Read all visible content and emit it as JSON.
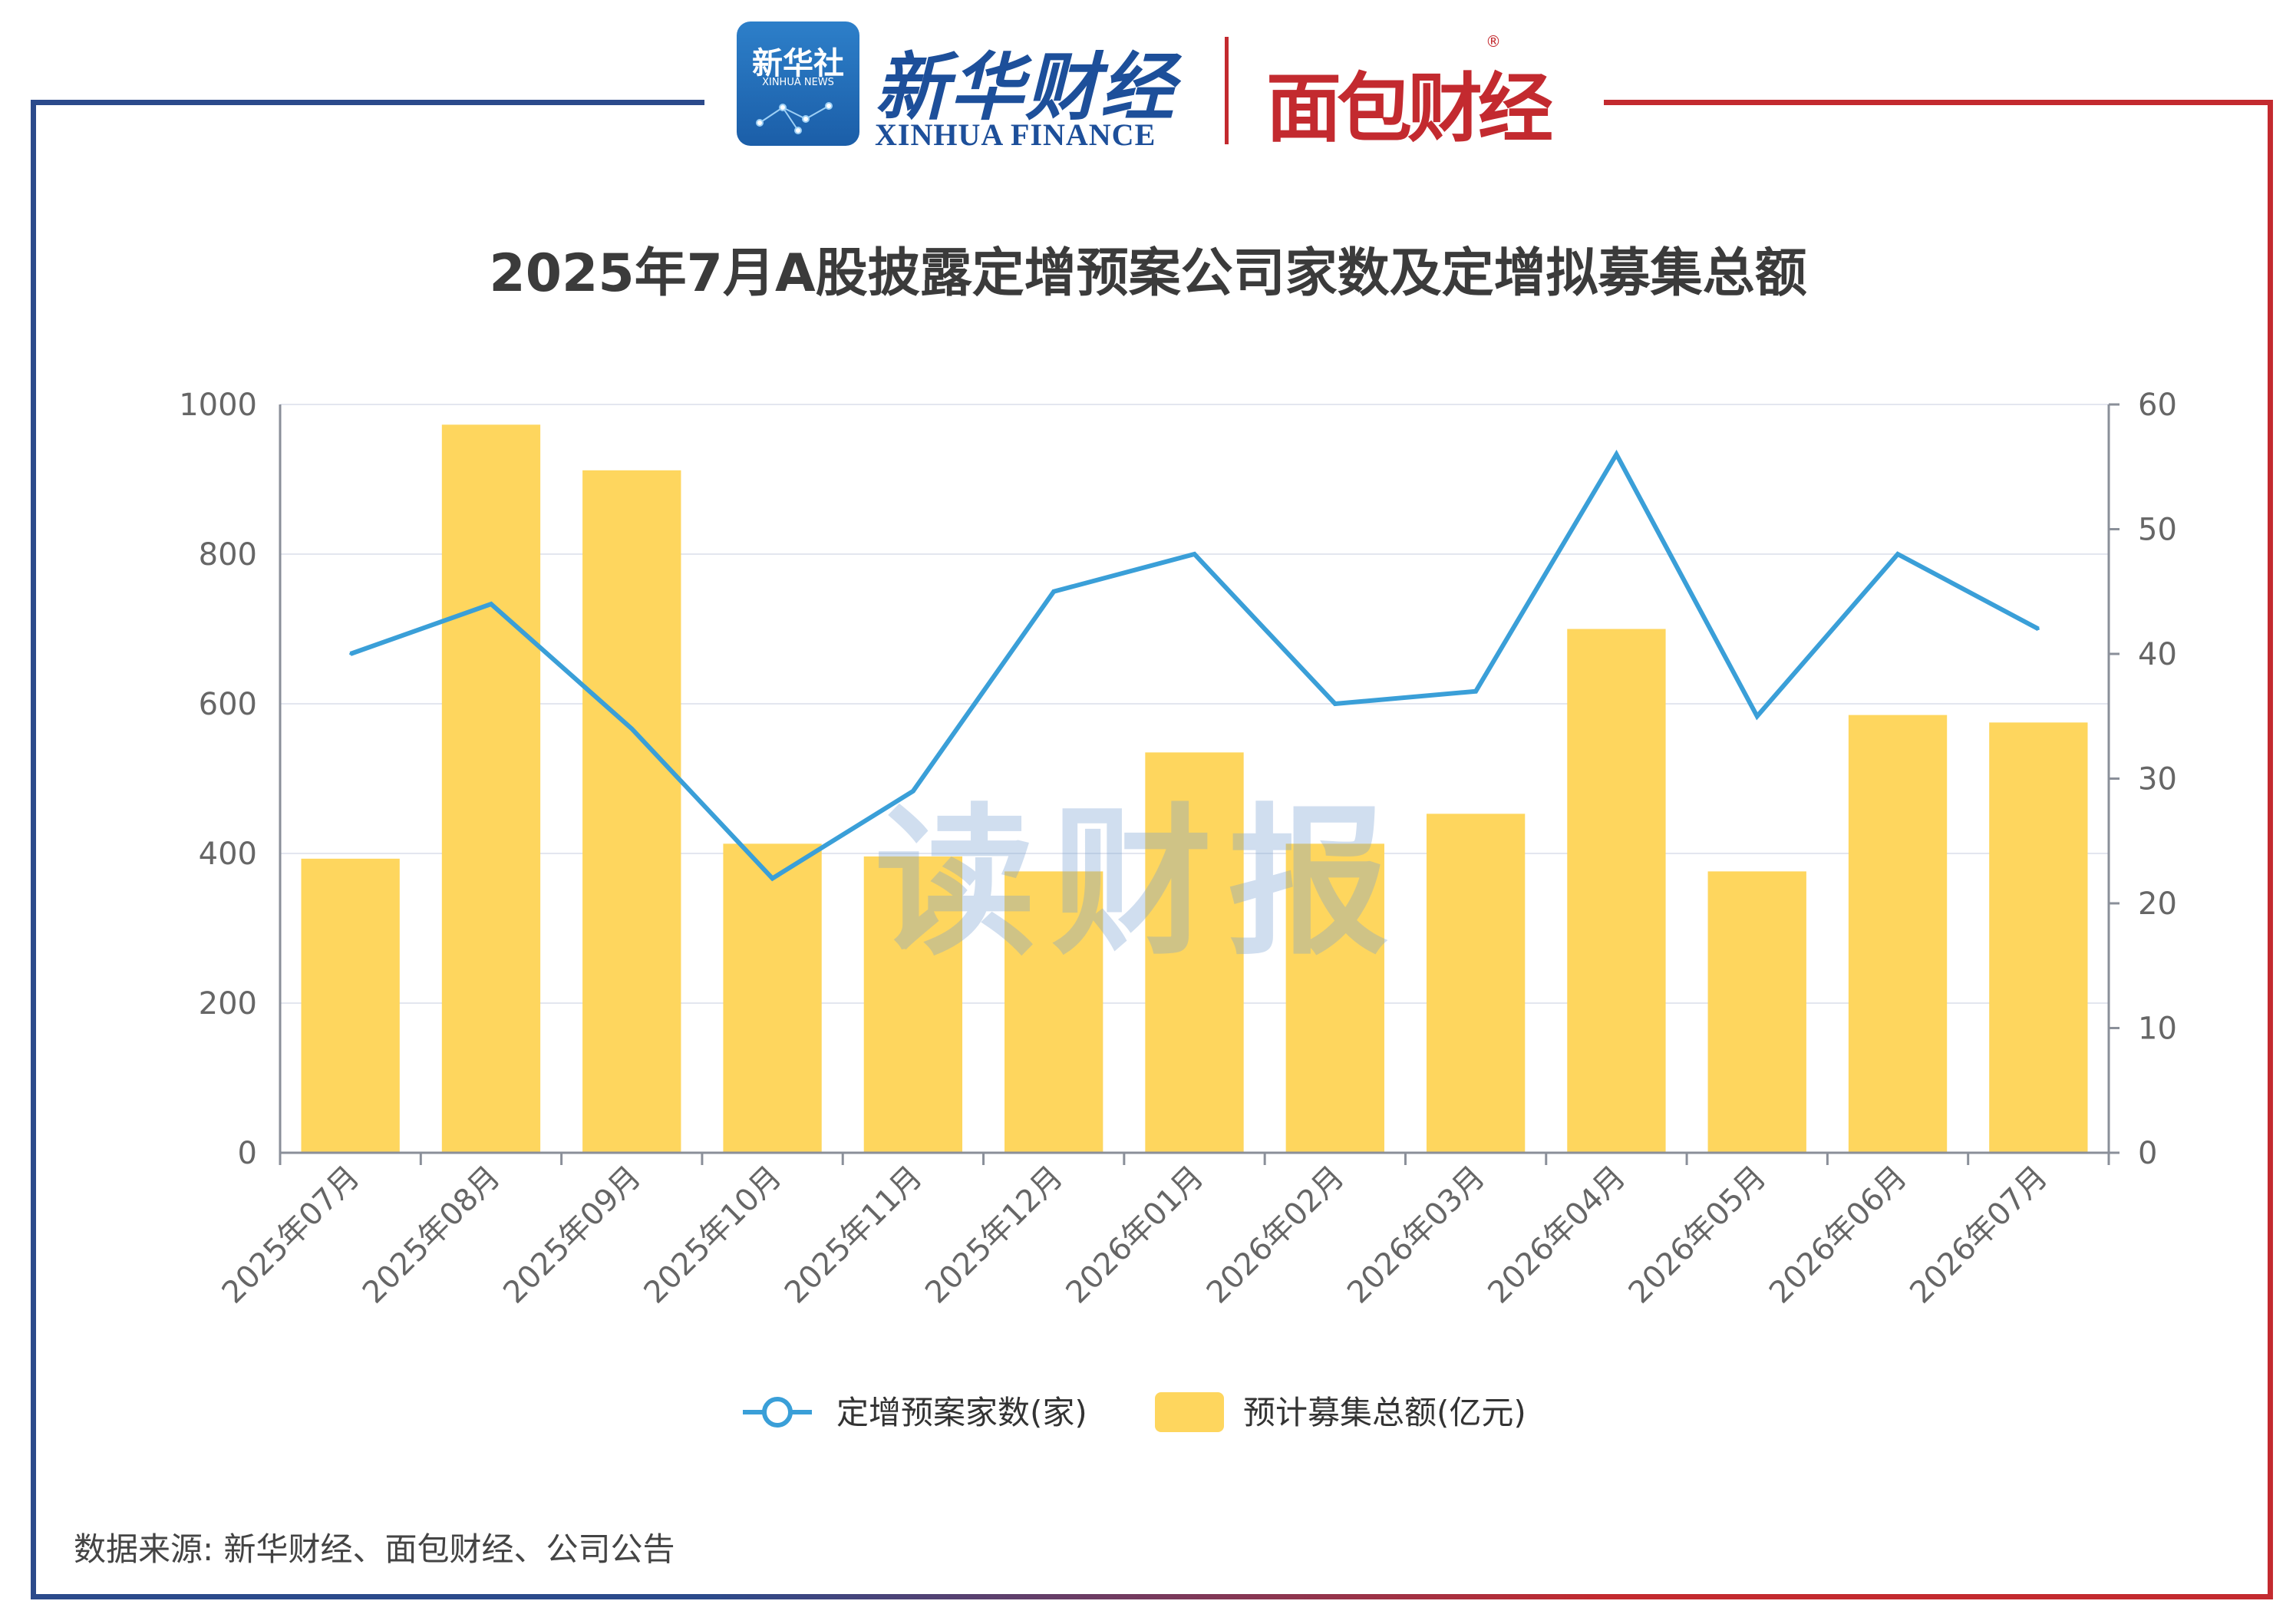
{
  "header": {
    "xinhua_badge_cn": "新华社",
    "xinhua_badge_en": "XINHUA NEWS",
    "xinhua_finance_cn": "新华财经",
    "xinhua_finance_en": "XINHUA FINANCE",
    "mianbao_cn": "面包财经",
    "registered_mark": "®"
  },
  "watermark": "读财报",
  "source": "数据来源: 新华财经、面包财经、公司公告",
  "colors": {
    "bar": "#fed65e",
    "line": "#3a9fd8",
    "frame_left": "#2b4a8b",
    "frame_right": "#c32a2f"
  },
  "chart_data": {
    "type": "bar",
    "title": "2025年7月A股披露定增预案公司家数及定增拟募集总额",
    "categories": [
      "2025年07月",
      "2025年08月",
      "2025年09月",
      "2025年10月",
      "2025年11月",
      "2025年12月",
      "2026年01月",
      "2026年02月",
      "2026年03月",
      "2026年04月",
      "2026年05月",
      "2026年06月",
      "2026年07月"
    ],
    "series": [
      {
        "name": "预计募集总额(亿元)",
        "type": "bar",
        "axis": "left",
        "values": [
          393,
          973,
          912,
          413,
          396,
          376,
          535,
          413,
          453,
          700,
          376,
          585,
          575
        ]
      },
      {
        "name": "定增预案家数(家)",
        "type": "line",
        "axis": "right",
        "values": [
          40,
          44,
          34,
          22,
          29,
          45,
          48,
          36,
          37,
          56,
          35,
          48,
          42
        ]
      }
    ],
    "y_left": {
      "min": 0,
      "max": 1000,
      "ticks": [
        0,
        200,
        400,
        600,
        800,
        1000
      ]
    },
    "y_right": {
      "min": 0,
      "max": 60,
      "ticks": [
        0,
        10,
        20,
        30,
        40,
        50,
        60
      ]
    },
    "legend": {
      "position": "bottom",
      "items": [
        "定增预案家数(家)",
        "预计募集总额(亿元)"
      ]
    },
    "grid": true
  }
}
